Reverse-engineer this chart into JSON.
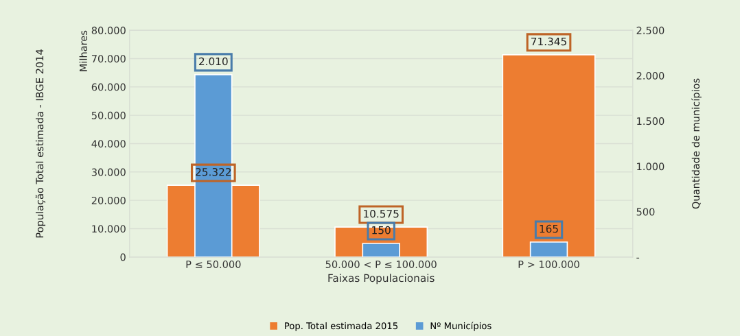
{
  "chart_data": {
    "type": "bar",
    "xlabel": "Faixas Populacionais",
    "ylabel": "População Total estimada - IBGE 2014",
    "y2label": "Quantidade de municípios",
    "annotations": [
      "Milhares"
    ],
    "categories": [
      "P ≤ 50.000",
      "50.000 < P ≤ 100.000",
      "P > 100.000"
    ],
    "series": [
      {
        "name": "Pop. Total estimada 2015",
        "color": "#ed7d31",
        "values": [
          25322,
          10575,
          71345
        ],
        "value_labels": [
          "25.322",
          "10.575",
          "71.345"
        ]
      },
      {
        "name": "Nº Municípios",
        "color": "#5b9bd5",
        "values": [
          2010,
          150,
          165
        ],
        "value_labels": [
          "2.010",
          "150",
          "165"
        ],
        "axis": "y2"
      }
    ],
    "ylim": [
      0,
      80000
    ],
    "yticks": [
      {
        "value": 0,
        "label": "0"
      },
      {
        "value": 10000,
        "label": "10.000"
      },
      {
        "value": 20000,
        "label": "20.000"
      },
      {
        "value": 30000,
        "label": "30.000"
      },
      {
        "value": 40000,
        "label": "40.000"
      },
      {
        "value": 50000,
        "label": "50.000"
      },
      {
        "value": 60000,
        "label": "60.000"
      },
      {
        "value": 70000,
        "label": "70.000"
      },
      {
        "value": 80000,
        "label": "80.000"
      }
    ],
    "y2lim": [
      0,
      2500
    ],
    "y2ticks": [
      {
        "value": 0,
        "label": "-"
      },
      {
        "value": 500,
        "label": "500"
      },
      {
        "value": 1000,
        "label": "1.000"
      },
      {
        "value": 1500,
        "label": "1.500"
      },
      {
        "value": 2000,
        "label": "2.000"
      },
      {
        "value": 2500,
        "label": "2.500"
      }
    ],
    "grid": "y",
    "legend": "bottom"
  }
}
